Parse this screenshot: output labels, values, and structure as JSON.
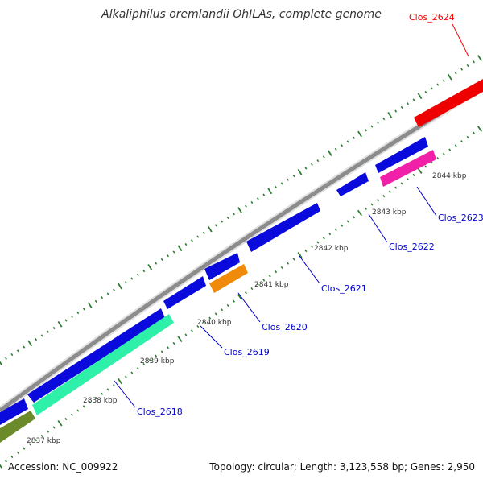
{
  "title": "Alkaliphilus oremlandii OhILAs, complete genome",
  "footer": {
    "accession": "Accession: NC_009922",
    "summary": "Topology: circular; Length: 3,123,558 bp; Genes: 2,950"
  },
  "kbp_labels": [
    "2837 kbp",
    "2838 kbp",
    "2839 kbp",
    "2840 kbp",
    "2841 kbp",
    "2842 kbp",
    "2843 kbp",
    "2844 kbp"
  ],
  "gene_labels": [
    {
      "text": "Clos_2618",
      "color": "#0000cc"
    },
    {
      "text": "Clos_2619",
      "color": "#0000cc"
    },
    {
      "text": "Clos_2620",
      "color": "#0000cc"
    },
    {
      "text": "Clos_2621",
      "color": "#0000cc"
    },
    {
      "text": "Clos_2622",
      "color": "#0000cc"
    },
    {
      "text": "Clos_2623",
      "color": "#0000cc"
    },
    {
      "text": "Clos_2624",
      "color": "#ff0000"
    }
  ],
  "colors": {
    "backbone": "#8c8c8c",
    "tick": "#2e7d32",
    "cds_blue": "#0a0adc",
    "teal": "#2ef0a8",
    "orange": "#f08a0a",
    "magenta": "#f020a8",
    "red": "#ee0000",
    "olive": "#6b8a2a"
  }
}
